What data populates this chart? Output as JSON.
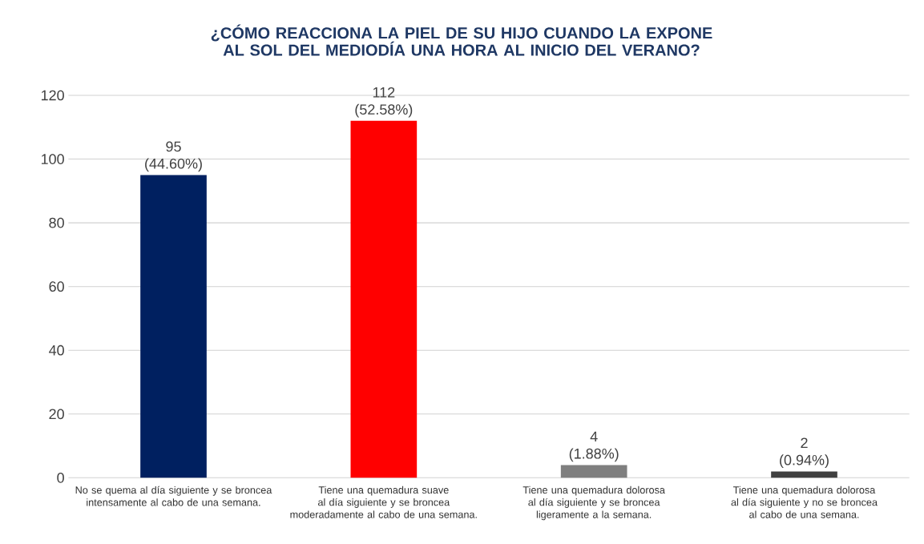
{
  "chart_data": {
    "type": "bar",
    "title": "¿CÓMO REACCIONA LA PIEL DE SU HIJO CUANDO LA EXPONE AL SOL DEL MEDIODÍA UNA HORA AL INICIO DEL VERANO?",
    "categories": [
      "No se quema al día siguiente y se broncea intensamente al cabo de una semana.",
      "Tiene una quemadura suave al día siguiente y se broncea moderadamente al cabo de una semana.",
      "Tiene una quemadura dolorosa al día siguiente y se broncea ligeramente a la semana.",
      "Tiene una quemadura dolorosa al día siguiente y no se broncea al cabo de una semana."
    ],
    "values": [
      95,
      112,
      4,
      2
    ],
    "colors": [
      "#002060",
      "#ff0000",
      "#7f7f7f",
      "#404040"
    ],
    "value_labels": [
      "95 (44.60%)",
      "112 (52.58%)",
      "4 (1.88%)",
      "2 (0.94%)"
    ],
    "ylim": [
      0,
      120
    ],
    "yticks": [
      0,
      20,
      40,
      60,
      80,
      100,
      120
    ],
    "grid": "y"
  }
}
